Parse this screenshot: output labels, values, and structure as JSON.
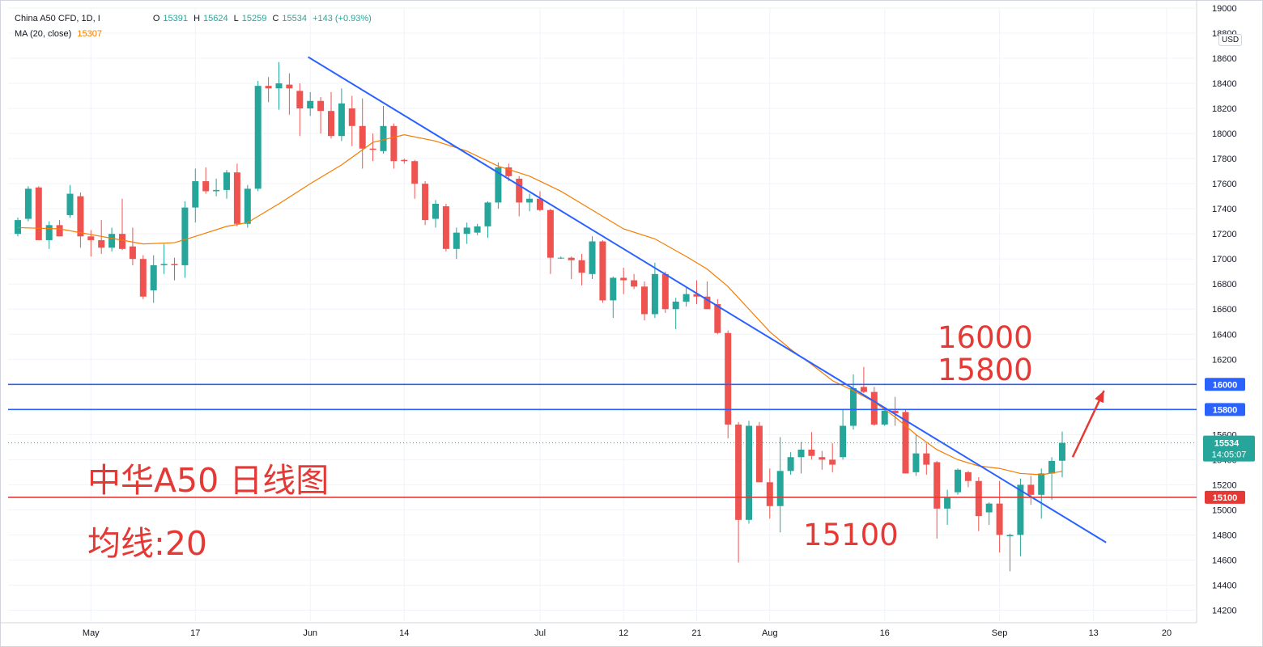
{
  "legend": {
    "symbol": "China A50 CFD, 1D, I",
    "open_label": "O",
    "open": "15391",
    "high_label": "H",
    "high": "15624",
    "low_label": "L",
    "low": "15259",
    "close_label": "C",
    "close": "15534",
    "change": "+143 (+0.93%)",
    "ma_label": "MA (20, close)",
    "ma_value": "15307"
  },
  "currency": "USD",
  "overlay": {
    "title": "中华A50 日线图",
    "ma_note": "均线:20",
    "level_16000": "16000",
    "level_15800": "15800",
    "level_15100": "15100"
  },
  "price_tag": {
    "price": "15534",
    "countdown": "14:05:07"
  },
  "colors": {
    "up": "#26a69a",
    "down": "#ef5350",
    "ma": "#f57c00",
    "trendline": "#2962ff",
    "resistance": "#2962ff",
    "support": "#e53935",
    "overlay_text": "#e53935"
  },
  "chart_data": {
    "type": "candlestick",
    "title": "China A50 CFD, 1D, I",
    "ylim": [
      14100,
      19000
    ],
    "y_ticks": [
      14200,
      14400,
      14600,
      14800,
      15000,
      15200,
      15400,
      15600,
      15800,
      16000,
      16200,
      16400,
      16600,
      16800,
      17000,
      17200,
      17400,
      17600,
      17800,
      18000,
      18200,
      18400,
      18600,
      18800,
      19000
    ],
    "x_ticks": [
      {
        "label": "May",
        "index": 7
      },
      {
        "label": "17",
        "index": 17
      },
      {
        "label": "Jun",
        "index": 28
      },
      {
        "label": "14",
        "index": 37
      },
      {
        "label": "Jul",
        "index": 50
      },
      {
        "label": "12",
        "index": 58
      },
      {
        "label": "21",
        "index": 65
      },
      {
        "label": "Aug",
        "index": 72
      },
      {
        "label": "16",
        "index": 83
      },
      {
        "label": "Sep",
        "index": 94
      },
      {
        "label": "13",
        "index": 103
      },
      {
        "label": "20",
        "index": 110
      }
    ],
    "x_range": [
      0,
      118
    ],
    "grid": true,
    "candles": [
      {
        "i": 0,
        "o": 17200,
        "h": 17330,
        "l": 17180,
        "c": 17310
      },
      {
        "i": 1,
        "o": 17320,
        "h": 17580,
        "l": 17300,
        "c": 17560
      },
      {
        "i": 2,
        "o": 17570,
        "h": 17580,
        "l": 17150,
        "c": 17150
      },
      {
        "i": 3,
        "o": 17150,
        "h": 17300,
        "l": 17080,
        "c": 17270
      },
      {
        "i": 4,
        "o": 17270,
        "h": 17310,
        "l": 17180,
        "c": 17180
      },
      {
        "i": 5,
        "o": 17350,
        "h": 17590,
        "l": 17330,
        "c": 17520
      },
      {
        "i": 6,
        "o": 17500,
        "h": 17530,
        "l": 17090,
        "c": 17180
      },
      {
        "i": 7,
        "o": 17180,
        "h": 17230,
        "l": 17020,
        "c": 17150
      },
      {
        "i": 8,
        "o": 17150,
        "h": 17310,
        "l": 17040,
        "c": 17090
      },
      {
        "i": 9,
        "o": 17090,
        "h": 17250,
        "l": 17060,
        "c": 17200
      },
      {
        "i": 10,
        "o": 17200,
        "h": 17480,
        "l": 17070,
        "c": 17080
      },
      {
        "i": 11,
        "o": 17100,
        "h": 17250,
        "l": 16950,
        "c": 17000
      },
      {
        "i": 12,
        "o": 17000,
        "h": 17030,
        "l": 16680,
        "c": 16700
      },
      {
        "i": 13,
        "o": 16750,
        "h": 17030,
        "l": 16650,
        "c": 16950
      },
      {
        "i": 14,
        "o": 16950,
        "h": 17120,
        "l": 16880,
        "c": 16960
      },
      {
        "i": 15,
        "o": 16960,
        "h": 17010,
        "l": 16830,
        "c": 16950
      },
      {
        "i": 16,
        "o": 16950,
        "h": 17460,
        "l": 16850,
        "c": 17410
      },
      {
        "i": 17,
        "o": 17410,
        "h": 17720,
        "l": 17290,
        "c": 17620
      },
      {
        "i": 18,
        "o": 17620,
        "h": 17730,
        "l": 17520,
        "c": 17540
      },
      {
        "i": 19,
        "o": 17540,
        "h": 17640,
        "l": 17500,
        "c": 17550
      },
      {
        "i": 20,
        "o": 17550,
        "h": 17710,
        "l": 17480,
        "c": 17690
      },
      {
        "i": 21,
        "o": 17690,
        "h": 17760,
        "l": 17260,
        "c": 17280
      },
      {
        "i": 22,
        "o": 17280,
        "h": 17590,
        "l": 17250,
        "c": 17560
      },
      {
        "i": 23,
        "o": 17560,
        "h": 18420,
        "l": 17540,
        "c": 18380
      },
      {
        "i": 24,
        "o": 18380,
        "h": 18450,
        "l": 18250,
        "c": 18360
      },
      {
        "i": 25,
        "o": 18360,
        "h": 18570,
        "l": 18190,
        "c": 18400
      },
      {
        "i": 26,
        "o": 18390,
        "h": 18480,
        "l": 18150,
        "c": 18360
      },
      {
        "i": 27,
        "o": 18340,
        "h": 18400,
        "l": 17980,
        "c": 18200
      },
      {
        "i": 28,
        "o": 18200,
        "h": 18330,
        "l": 18140,
        "c": 18260
      },
      {
        "i": 29,
        "o": 18260,
        "h": 18290,
        "l": 18000,
        "c": 18180
      },
      {
        "i": 30,
        "o": 18180,
        "h": 18330,
        "l": 17960,
        "c": 17980
      },
      {
        "i": 31,
        "o": 17980,
        "h": 18360,
        "l": 17940,
        "c": 18240
      },
      {
        "i": 32,
        "o": 18200,
        "h": 18300,
        "l": 17900,
        "c": 18060
      },
      {
        "i": 33,
        "o": 18060,
        "h": 18280,
        "l": 17720,
        "c": 17880
      },
      {
        "i": 34,
        "o": 17880,
        "h": 18000,
        "l": 17780,
        "c": 17870
      },
      {
        "i": 35,
        "o": 17860,
        "h": 18220,
        "l": 17840,
        "c": 18060
      },
      {
        "i": 36,
        "o": 18060,
        "h": 18080,
        "l": 17720,
        "c": 17780
      },
      {
        "i": 37,
        "o": 17790,
        "h": 17800,
        "l": 17760,
        "c": 17780
      },
      {
        "i": 38,
        "o": 17780,
        "h": 17790,
        "l": 17480,
        "c": 17600
      },
      {
        "i": 39,
        "o": 17600,
        "h": 17620,
        "l": 17270,
        "c": 17310
      },
      {
        "i": 40,
        "o": 17320,
        "h": 17470,
        "l": 17250,
        "c": 17440
      },
      {
        "i": 41,
        "o": 17420,
        "h": 17440,
        "l": 17060,
        "c": 17080
      },
      {
        "i": 42,
        "o": 17080,
        "h": 17250,
        "l": 17000,
        "c": 17210
      },
      {
        "i": 43,
        "o": 17200,
        "h": 17290,
        "l": 17120,
        "c": 17250
      },
      {
        "i": 44,
        "o": 17210,
        "h": 17280,
        "l": 17190,
        "c": 17260
      },
      {
        "i": 45,
        "o": 17260,
        "h": 17460,
        "l": 17170,
        "c": 17450
      },
      {
        "i": 46,
        "o": 17450,
        "h": 17770,
        "l": 17400,
        "c": 17730
      },
      {
        "i": 47,
        "o": 17730,
        "h": 17760,
        "l": 17620,
        "c": 17660
      },
      {
        "i": 48,
        "o": 17640,
        "h": 17660,
        "l": 17340,
        "c": 17450
      },
      {
        "i": 49,
        "o": 17450,
        "h": 17520,
        "l": 17380,
        "c": 17480
      },
      {
        "i": 50,
        "o": 17480,
        "h": 17540,
        "l": 17380,
        "c": 17390
      },
      {
        "i": 51,
        "o": 17390,
        "h": 17400,
        "l": 16880,
        "c": 17010
      },
      {
        "i": 52,
        "o": 17010,
        "h": 17020,
        "l": 17000,
        "c": 17010
      },
      {
        "i": 53,
        "o": 17010,
        "h": 17020,
        "l": 16840,
        "c": 16990
      },
      {
        "i": 54,
        "o": 16990,
        "h": 17040,
        "l": 16790,
        "c": 16890
      },
      {
        "i": 55,
        "o": 16880,
        "h": 17180,
        "l": 16840,
        "c": 17140
      },
      {
        "i": 56,
        "o": 17140,
        "h": 17150,
        "l": 16650,
        "c": 16670
      },
      {
        "i": 57,
        "o": 16670,
        "h": 16860,
        "l": 16530,
        "c": 16850
      },
      {
        "i": 58,
        "o": 16850,
        "h": 16930,
        "l": 16720,
        "c": 16830
      },
      {
        "i": 59,
        "o": 16830,
        "h": 16880,
        "l": 16760,
        "c": 16780
      },
      {
        "i": 60,
        "o": 16780,
        "h": 16820,
        "l": 16510,
        "c": 16560
      },
      {
        "i": 61,
        "o": 16560,
        "h": 16970,
        "l": 16530,
        "c": 16880
      },
      {
        "i": 62,
        "o": 16880,
        "h": 16900,
        "l": 16570,
        "c": 16600
      },
      {
        "i": 63,
        "o": 16600,
        "h": 16690,
        "l": 16440,
        "c": 16660
      },
      {
        "i": 64,
        "o": 16660,
        "h": 16770,
        "l": 16620,
        "c": 16720
      },
      {
        "i": 65,
        "o": 16720,
        "h": 16830,
        "l": 16640,
        "c": 16700
      },
      {
        "i": 66,
        "o": 16700,
        "h": 16820,
        "l": 16600,
        "c": 16600
      },
      {
        "i": 67,
        "o": 16640,
        "h": 16680,
        "l": 16400,
        "c": 16410
      },
      {
        "i": 68,
        "o": 16410,
        "h": 16430,
        "l": 15570,
        "c": 15680
      },
      {
        "i": 69,
        "o": 15680,
        "h": 15700,
        "l": 14580,
        "c": 14920
      },
      {
        "i": 70,
        "o": 14920,
        "h": 15710,
        "l": 14890,
        "c": 15670
      },
      {
        "i": 71,
        "o": 15670,
        "h": 15700,
        "l": 15220,
        "c": 15220
      },
      {
        "i": 72,
        "o": 15220,
        "h": 15330,
        "l": 14930,
        "c": 15030
      },
      {
        "i": 73,
        "o": 15030,
        "h": 15580,
        "l": 14820,
        "c": 15310
      },
      {
        "i": 74,
        "o": 15310,
        "h": 15460,
        "l": 15280,
        "c": 15420
      },
      {
        "i": 75,
        "o": 15420,
        "h": 15540,
        "l": 15290,
        "c": 15480
      },
      {
        "i": 76,
        "o": 15480,
        "h": 15620,
        "l": 15400,
        "c": 15430
      },
      {
        "i": 77,
        "o": 15420,
        "h": 15470,
        "l": 15320,
        "c": 15400
      },
      {
        "i": 78,
        "o": 15400,
        "h": 15530,
        "l": 15300,
        "c": 15360
      },
      {
        "i": 79,
        "o": 15420,
        "h": 15800,
        "l": 15400,
        "c": 15670
      },
      {
        "i": 80,
        "o": 15670,
        "h": 16080,
        "l": 15640,
        "c": 15970
      },
      {
        "i": 81,
        "o": 15980,
        "h": 16140,
        "l": 15930,
        "c": 15940
      },
      {
        "i": 82,
        "o": 15940,
        "h": 15980,
        "l": 15670,
        "c": 15680
      },
      {
        "i": 83,
        "o": 15680,
        "h": 15820,
        "l": 15670,
        "c": 15790
      },
      {
        "i": 84,
        "o": 15790,
        "h": 15900,
        "l": 15670,
        "c": 15770
      },
      {
        "i": 85,
        "o": 15780,
        "h": 15800,
        "l": 15290,
        "c": 15290
      },
      {
        "i": 86,
        "o": 15300,
        "h": 15600,
        "l": 15270,
        "c": 15450
      },
      {
        "i": 87,
        "o": 15450,
        "h": 15530,
        "l": 15280,
        "c": 15360
      },
      {
        "i": 88,
        "o": 15380,
        "h": 15390,
        "l": 14770,
        "c": 15010
      },
      {
        "i": 89,
        "o": 15010,
        "h": 15160,
        "l": 14880,
        "c": 15100
      },
      {
        "i": 90,
        "o": 15140,
        "h": 15330,
        "l": 15120,
        "c": 15320
      },
      {
        "i": 91,
        "o": 15300,
        "h": 15310,
        "l": 15180,
        "c": 15230
      },
      {
        "i": 92,
        "o": 15230,
        "h": 15260,
        "l": 14830,
        "c": 14950
      },
      {
        "i": 93,
        "o": 14980,
        "h": 15060,
        "l": 14880,
        "c": 15050
      },
      {
        "i": 94,
        "o": 15050,
        "h": 15230,
        "l": 14660,
        "c": 14800
      },
      {
        "i": 95,
        "o": 14790,
        "h": 14810,
        "l": 14510,
        "c": 14800
      },
      {
        "i": 96,
        "o": 14800,
        "h": 15250,
        "l": 14630,
        "c": 15200
      },
      {
        "i": 97,
        "o": 15200,
        "h": 15270,
        "l": 15040,
        "c": 15120
      },
      {
        "i": 98,
        "o": 15120,
        "h": 15330,
        "l": 14930,
        "c": 15290
      },
      {
        "i": 99,
        "o": 15290,
        "h": 15420,
        "l": 15080,
        "c": 15390
      },
      {
        "i": 100,
        "o": 15391,
        "h": 15624,
        "l": 15259,
        "c": 15534
      }
    ],
    "ma": {
      "name": "MA (20, close)",
      "points": [
        {
          "i": 0,
          "v": 17250
        },
        {
          "i": 4,
          "v": 17240
        },
        {
          "i": 8,
          "v": 17180
        },
        {
          "i": 12,
          "v": 17120
        },
        {
          "i": 15,
          "v": 17130
        },
        {
          "i": 17,
          "v": 17180
        },
        {
          "i": 20,
          "v": 17260
        },
        {
          "i": 22,
          "v": 17290
        },
        {
          "i": 25,
          "v": 17440
        },
        {
          "i": 28,
          "v": 17600
        },
        {
          "i": 31,
          "v": 17750
        },
        {
          "i": 34,
          "v": 17930
        },
        {
          "i": 37,
          "v": 17990
        },
        {
          "i": 40,
          "v": 17940
        },
        {
          "i": 43,
          "v": 17860
        },
        {
          "i": 46,
          "v": 17740
        },
        {
          "i": 49,
          "v": 17660
        },
        {
          "i": 52,
          "v": 17540
        },
        {
          "i": 55,
          "v": 17390
        },
        {
          "i": 58,
          "v": 17240
        },
        {
          "i": 61,
          "v": 17160
        },
        {
          "i": 64,
          "v": 17020
        },
        {
          "i": 66,
          "v": 16920
        },
        {
          "i": 68,
          "v": 16780
        },
        {
          "i": 70,
          "v": 16600
        },
        {
          "i": 72,
          "v": 16420
        },
        {
          "i": 74,
          "v": 16280
        },
        {
          "i": 76,
          "v": 16160
        },
        {
          "i": 78,
          "v": 16030
        },
        {
          "i": 80,
          "v": 15950
        },
        {
          "i": 82,
          "v": 15860
        },
        {
          "i": 84,
          "v": 15740
        },
        {
          "i": 86,
          "v": 15600
        },
        {
          "i": 88,
          "v": 15480
        },
        {
          "i": 90,
          "v": 15400
        },
        {
          "i": 92,
          "v": 15350
        },
        {
          "i": 94,
          "v": 15330
        },
        {
          "i": 96,
          "v": 15290
        },
        {
          "i": 98,
          "v": 15280
        },
        {
          "i": 100,
          "v": 15307
        }
      ]
    },
    "trendline": {
      "from": {
        "i": 27.8,
        "v": 18610
      },
      "to": {
        "i": 104.2,
        "v": 14740
      }
    },
    "horizontal_levels": [
      {
        "value": 16000,
        "color": "#2962ff"
      },
      {
        "value": 15800,
        "color": "#2962ff"
      },
      {
        "value": 15100,
        "color": "#e53935"
      }
    ],
    "current_price": 15534,
    "arrow": {
      "from": {
        "i": 101,
        "v": 15420
      },
      "to": {
        "i": 104,
        "v": 15950
      }
    }
  }
}
